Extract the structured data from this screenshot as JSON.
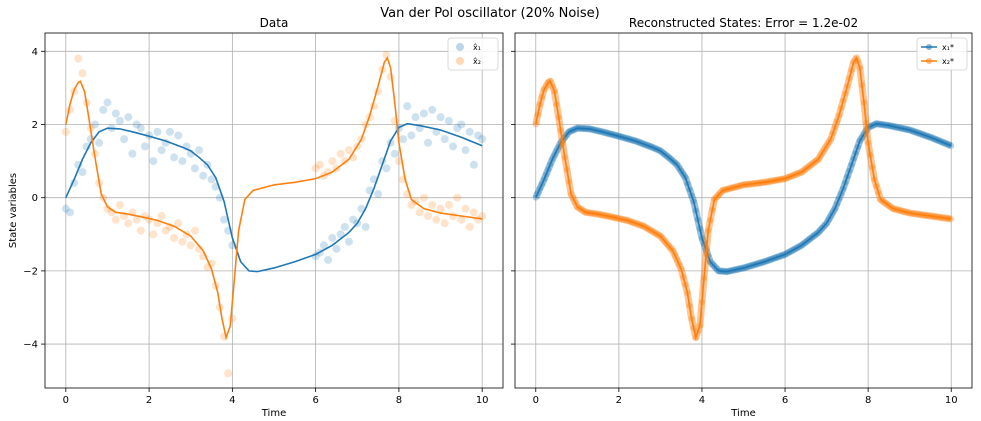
{
  "figure": {
    "suptitle": "Van der Pol oscillator (20% Noise)"
  },
  "colors": {
    "x1": "#1f77b4",
    "x2": "#ff7f0e",
    "grid": "#b0b0b0"
  },
  "chart_data": [
    {
      "type": "line",
      "title": "Data",
      "xlabel": "Time",
      "ylabel": "State variables",
      "xlim": [
        -0.5,
        10.5
      ],
      "ylim": [
        -5.2,
        4.5
      ],
      "xticks": [
        0,
        2,
        4,
        6,
        8,
        10
      ],
      "yticks": [
        -4,
        -2,
        0,
        2,
        4
      ],
      "xtick_labels": [
        "0",
        "2",
        "4",
        "6",
        "8",
        "10"
      ],
      "ytick_labels": [
        "−4",
        "−2",
        "0",
        "2",
        "4"
      ],
      "grid": true,
      "legend": "top-right",
      "series": [
        {
          "name": "x̂₁",
          "kind": "scatter",
          "color": "#1f77b4",
          "alpha": 0.22,
          "points": [
            [
              0.0,
              -0.3
            ],
            [
              0.1,
              -0.4
            ],
            [
              0.2,
              0.4
            ],
            [
              0.3,
              0.9
            ],
            [
              0.4,
              0.7
            ],
            [
              0.5,
              1.4
            ],
            [
              0.6,
              1.6
            ],
            [
              0.7,
              2.0
            ],
            [
              0.8,
              1.5
            ],
            [
              0.9,
              2.4
            ],
            [
              1.0,
              2.6
            ],
            [
              1.1,
              1.9
            ],
            [
              1.2,
              2.3
            ],
            [
              1.3,
              2.1
            ],
            [
              1.4,
              1.6
            ],
            [
              1.5,
              2.2
            ],
            [
              1.6,
              1.2
            ],
            [
              1.7,
              2.0
            ],
            [
              1.8,
              1.9
            ],
            [
              1.9,
              1.4
            ],
            [
              2.0,
              1.7
            ],
            [
              2.1,
              1.0
            ],
            [
              2.2,
              1.8
            ],
            [
              2.3,
              1.3
            ],
            [
              2.4,
              1.5
            ],
            [
              2.5,
              1.8
            ],
            [
              2.6,
              1.1
            ],
            [
              2.7,
              1.7
            ],
            [
              2.8,
              1.0
            ],
            [
              2.9,
              1.4
            ],
            [
              3.0,
              1.2
            ],
            [
              3.1,
              0.8
            ],
            [
              3.2,
              1.3
            ],
            [
              3.3,
              0.6
            ],
            [
              3.4,
              0.9
            ],
            [
              3.5,
              0.5
            ],
            [
              3.6,
              0.3
            ],
            [
              3.7,
              0.0
            ],
            [
              3.8,
              -0.6
            ],
            [
              3.9,
              -0.9
            ],
            [
              4.0,
              -1.3
            ],
            [
              6.0,
              -1.6
            ],
            [
              6.1,
              -1.5
            ],
            [
              6.2,
              -1.3
            ],
            [
              6.3,
              -1.7
            ],
            [
              6.4,
              -1.1
            ],
            [
              6.5,
              -1.4
            ],
            [
              6.6,
              -1.0
            ],
            [
              6.7,
              -0.8
            ],
            [
              6.8,
              -1.2
            ],
            [
              6.9,
              -0.6
            ],
            [
              7.0,
              -0.7
            ],
            [
              7.1,
              -0.3
            ],
            [
              7.2,
              -0.8
            ],
            [
              7.3,
              0.2
            ],
            [
              7.4,
              0.5
            ],
            [
              7.5,
              0.1
            ],
            [
              7.6,
              1.0
            ],
            [
              7.7,
              0.8
            ],
            [
              7.8,
              1.5
            ],
            [
              7.9,
              1.2
            ],
            [
              8.0,
              1.9
            ],
            [
              8.1,
              1.6
            ],
            [
              8.2,
              2.5
            ],
            [
              8.3,
              1.7
            ],
            [
              8.4,
              2.2
            ],
            [
              8.5,
              1.9
            ],
            [
              8.6,
              2.3
            ],
            [
              8.7,
              1.5
            ],
            [
              8.8,
              2.4
            ],
            [
              8.9,
              1.8
            ],
            [
              9.0,
              2.2
            ],
            [
              9.1,
              1.6
            ],
            [
              9.2,
              2.1
            ],
            [
              9.3,
              1.4
            ],
            [
              9.4,
              1.9
            ],
            [
              9.5,
              2.0
            ],
            [
              9.6,
              1.3
            ],
            [
              9.7,
              1.8
            ],
            [
              9.8,
              0.9
            ],
            [
              9.9,
              1.7
            ],
            [
              10.0,
              1.6
            ]
          ]
        },
        {
          "name": "x̂₂",
          "kind": "scatter",
          "color": "#ff7f0e",
          "alpha": 0.22,
          "points": [
            [
              0.0,
              1.8
            ],
            [
              0.1,
              2.4
            ],
            [
              0.2,
              2.9
            ],
            [
              0.3,
              3.8
            ],
            [
              0.4,
              3.4
            ],
            [
              0.5,
              2.6
            ],
            [
              0.6,
              1.9
            ],
            [
              0.7,
              1.2
            ],
            [
              0.8,
              0.4
            ],
            [
              0.9,
              0.0
            ],
            [
              1.0,
              -0.3
            ],
            [
              1.1,
              -0.4
            ],
            [
              1.2,
              -0.6
            ],
            [
              1.3,
              -0.2
            ],
            [
              1.4,
              -0.5
            ],
            [
              1.5,
              -0.7
            ],
            [
              1.6,
              -0.4
            ],
            [
              1.7,
              -0.6
            ],
            [
              1.8,
              -0.9
            ],
            [
              1.9,
              -0.5
            ],
            [
              2.0,
              -0.6
            ],
            [
              2.1,
              -1.0
            ],
            [
              2.2,
              -0.7
            ],
            [
              2.3,
              -0.5
            ],
            [
              2.4,
              -0.9
            ],
            [
              2.5,
              -0.8
            ],
            [
              2.6,
              -1.1
            ],
            [
              2.7,
              -0.7
            ],
            [
              2.8,
              -1.2
            ],
            [
              2.9,
              -1.0
            ],
            [
              3.0,
              -1.3
            ],
            [
              3.1,
              -0.9
            ],
            [
              3.2,
              -1.4
            ],
            [
              3.3,
              -1.6
            ],
            [
              3.4,
              -1.9
            ],
            [
              3.5,
              -1.8
            ],
            [
              3.6,
              -2.4
            ],
            [
              3.7,
              -3.0
            ],
            [
              3.8,
              -3.8
            ],
            [
              3.9,
              -4.8
            ],
            [
              4.0,
              -3.3
            ],
            [
              6.0,
              0.8
            ],
            [
              6.1,
              0.9
            ],
            [
              6.2,
              0.6
            ],
            [
              6.3,
              0.7
            ],
            [
              6.4,
              1.0
            ],
            [
              6.5,
              0.8
            ],
            [
              6.6,
              1.2
            ],
            [
              6.7,
              1.0
            ],
            [
              6.8,
              1.3
            ],
            [
              6.9,
              1.1
            ],
            [
              7.0,
              1.4
            ],
            [
              7.1,
              1.6
            ],
            [
              7.2,
              2.0
            ],
            [
              7.3,
              2.2
            ],
            [
              7.4,
              2.5
            ],
            [
              7.5,
              2.9
            ],
            [
              7.6,
              3.5
            ],
            [
              7.7,
              3.9
            ],
            [
              7.8,
              3.3
            ],
            [
              7.9,
              2.1
            ],
            [
              8.0,
              1.0
            ],
            [
              8.1,
              0.5
            ],
            [
              8.2,
              0.1
            ],
            [
              8.3,
              -0.2
            ],
            [
              8.4,
              -0.1
            ],
            [
              8.5,
              -0.4
            ],
            [
              8.6,
              0.0
            ],
            [
              8.7,
              -0.5
            ],
            [
              8.8,
              -0.2
            ],
            [
              8.9,
              -0.6
            ],
            [
              9.0,
              -0.3
            ],
            [
              9.1,
              -0.7
            ],
            [
              9.2,
              -0.2
            ],
            [
              9.3,
              -0.5
            ],
            [
              9.4,
              0.0
            ],
            [
              9.5,
              -0.6
            ],
            [
              9.6,
              -0.3
            ],
            [
              9.7,
              -0.8
            ],
            [
              9.8,
              -0.4
            ],
            [
              9.9,
              -0.6
            ],
            [
              10.0,
              -0.5
            ]
          ]
        },
        {
          "name": "",
          "kind": "line",
          "color": "#1f77b4",
          "points": [
            [
              0.0,
              0.0
            ],
            [
              0.2,
              0.5
            ],
            [
              0.4,
              1.05
            ],
            [
              0.6,
              1.5
            ],
            [
              0.8,
              1.8
            ],
            [
              1.0,
              1.9
            ],
            [
              1.3,
              1.88
            ],
            [
              1.6,
              1.8
            ],
            [
              2.0,
              1.68
            ],
            [
              2.4,
              1.55
            ],
            [
              2.8,
              1.38
            ],
            [
              3.0,
              1.28
            ],
            [
              3.2,
              1.1
            ],
            [
              3.4,
              0.9
            ],
            [
              3.6,
              0.55
            ],
            [
              3.8,
              -0.1
            ],
            [
              4.0,
              -1.1
            ],
            [
              4.2,
              -1.75
            ],
            [
              4.4,
              -2.0
            ],
            [
              4.6,
              -2.02
            ],
            [
              5.0,
              -1.92
            ],
            [
              5.5,
              -1.75
            ],
            [
              6.0,
              -1.55
            ],
            [
              6.4,
              -1.3
            ],
            [
              6.8,
              -0.95
            ],
            [
              7.0,
              -0.7
            ],
            [
              7.2,
              -0.3
            ],
            [
              7.4,
              0.25
            ],
            [
              7.6,
              0.9
            ],
            [
              7.8,
              1.55
            ],
            [
              8.0,
              1.92
            ],
            [
              8.2,
              2.02
            ],
            [
              8.5,
              1.97
            ],
            [
              9.0,
              1.85
            ],
            [
              9.5,
              1.65
            ],
            [
              10.0,
              1.42
            ]
          ]
        },
        {
          "name": "",
          "kind": "line",
          "color": "#ff7f0e",
          "points": [
            [
              0.0,
              2.0
            ],
            [
              0.1,
              2.55
            ],
            [
              0.2,
              2.95
            ],
            [
              0.3,
              3.15
            ],
            [
              0.35,
              3.18
            ],
            [
              0.45,
              2.9
            ],
            [
              0.55,
              2.2
            ],
            [
              0.7,
              1.1
            ],
            [
              0.85,
              0.1
            ],
            [
              1.0,
              -0.25
            ],
            [
              1.2,
              -0.4
            ],
            [
              1.5,
              -0.45
            ],
            [
              1.8,
              -0.52
            ],
            [
              2.2,
              -0.62
            ],
            [
              2.6,
              -0.78
            ],
            [
              3.0,
              -1.05
            ],
            [
              3.3,
              -1.45
            ],
            [
              3.5,
              -1.95
            ],
            [
              3.65,
              -2.6
            ],
            [
              3.75,
              -3.3
            ],
            [
              3.85,
              -3.82
            ],
            [
              3.95,
              -3.5
            ],
            [
              4.05,
              -2.2
            ],
            [
              4.15,
              -0.9
            ],
            [
              4.3,
              -0.05
            ],
            [
              4.5,
              0.2
            ],
            [
              5.0,
              0.35
            ],
            [
              5.5,
              0.42
            ],
            [
              6.0,
              0.52
            ],
            [
              6.4,
              0.7
            ],
            [
              6.8,
              1.05
            ],
            [
              7.1,
              1.6
            ],
            [
              7.3,
              2.25
            ],
            [
              7.5,
              3.05
            ],
            [
              7.65,
              3.7
            ],
            [
              7.72,
              3.82
            ],
            [
              7.8,
              3.55
            ],
            [
              7.9,
              2.6
            ],
            [
              8.0,
              1.5
            ],
            [
              8.15,
              0.5
            ],
            [
              8.3,
              -0.05
            ],
            [
              8.6,
              -0.3
            ],
            [
              9.0,
              -0.42
            ],
            [
              9.5,
              -0.5
            ],
            [
              10.0,
              -0.58
            ]
          ]
        }
      ]
    },
    {
      "type": "line",
      "title": "Reconstructed States: Error = 1.2e-02",
      "xlabel": "Time",
      "xlim": [
        -0.5,
        10.5
      ],
      "ylim": [
        -5.2,
        4.5
      ],
      "xticks": [
        0,
        2,
        4,
        6,
        8,
        10
      ],
      "yticks": [
        -4,
        -2,
        0,
        2,
        4
      ],
      "xtick_labels": [
        "0",
        "2",
        "4",
        "6",
        "8",
        "10"
      ],
      "grid": true,
      "legend": "top-right",
      "series": [
        {
          "name": "x₁*",
          "color": "#1f77b4",
          "ref": 2
        },
        {
          "name": "x₂*",
          "color": "#ff7f0e",
          "ref": 3
        }
      ]
    }
  ]
}
